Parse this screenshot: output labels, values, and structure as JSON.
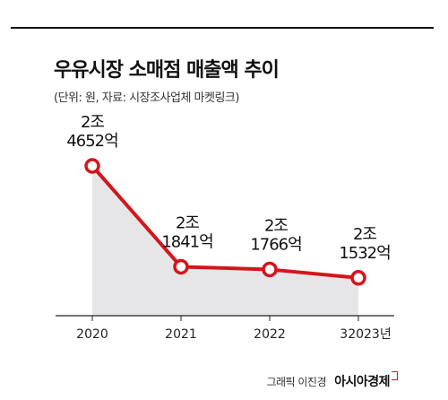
{
  "title": "우유시장 소매점 매출액 추이",
  "subtitle": "(단위: 원, 자료: 시장조사업체 마켓링크)",
  "chart_data": {
    "type": "area",
    "x": [
      "2020",
      "2021",
      "2022",
      "32023년"
    ],
    "values": [
      24652,
      21841,
      21766,
      21532
    ],
    "data_labels": [
      [
        "2조",
        "4652억"
      ],
      [
        "2조",
        "1841억"
      ],
      [
        "2조",
        "1766억"
      ],
      [
        "2조",
        "1532억"
      ]
    ],
    "line_color": "#d4151c",
    "fill_color": "#e6e6e8",
    "grid": false,
    "legend": "none"
  },
  "footer": {
    "credit": "그래픽 이진경",
    "brand": "아시아경제"
  }
}
